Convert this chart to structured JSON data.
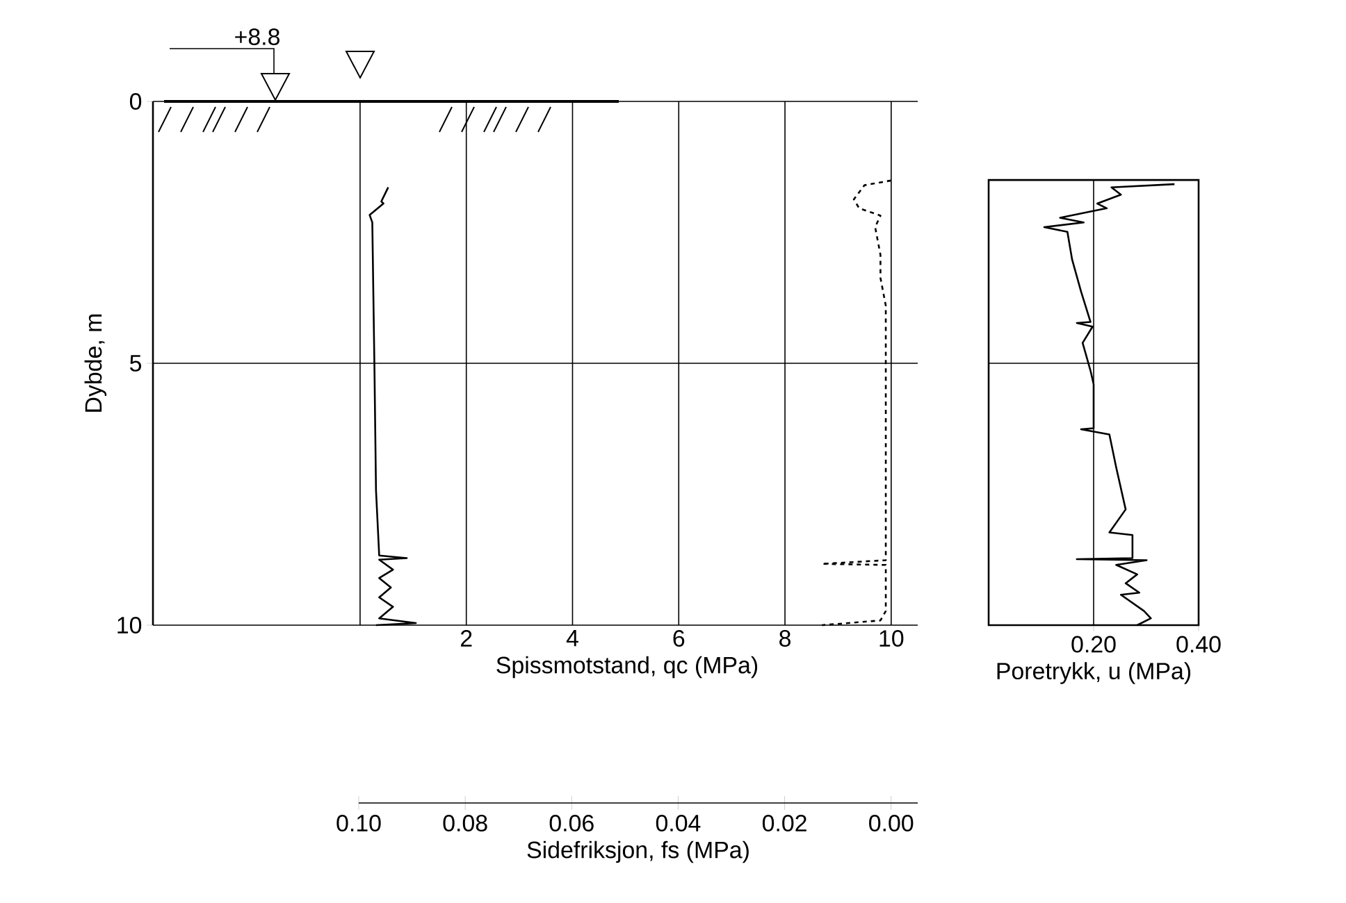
{
  "chart_data": [
    {
      "type": "line",
      "ylabel": "Dybde, m",
      "xlabel": "Spissmotstand, qc (MPa)",
      "x2label": "Sidefriksjon, fs (MPa)",
      "xlim": [
        -3.9,
        10.5
      ],
      "xticks": [
        {
          "value": 0,
          "label": null
        },
        2,
        4,
        6,
        8,
        10
      ],
      "x2lim": [
        0.1,
        -0.005
      ],
      "x2ticks": [
        {
          "value": 0.1,
          "label": "0.10"
        },
        0.08,
        0.06,
        0.04,
        0.02,
        {
          "value": 0,
          "label": "0.00"
        }
      ],
      "ylim": [
        10,
        0
      ],
      "yticks": [
        0,
        5,
        10
      ],
      "grid": true,
      "annotations": [
        "+8.8"
      ],
      "series": [
        {
          "color": "#000000",
          "x": [
            0.53,
            0.4,
            0.44,
            0.18,
            0.23,
            0.27,
            0.3,
            0.36,
            0.88,
            0.36,
            0.62,
            0.36,
            0.58,
            0.36,
            0.62,
            0.36,
            1.05,
            0.3
          ],
          "values": [
            1.64,
            1.91,
            1.95,
            2.17,
            2.31,
            5.05,
            7.43,
            8.67,
            8.72,
            8.75,
            8.94,
            9.1,
            9.28,
            9.47,
            9.65,
            9.87,
            9.96,
            10.0
          ]
        },
        {
          "color": "#000000",
          "axis": "x2",
          "line_style": "dashed",
          "x": [
            0.0,
            0.005,
            0.007,
            0.006,
            0.002,
            0.003,
            0.002,
            0.002,
            0.001,
            0.001,
            0.001,
            0.001,
            0.001,
            0.001,
            0.013,
            0.001,
            0.001,
            0.002,
            0.013
          ],
          "values": [
            1.51,
            1.6,
            1.87,
            2.04,
            2.18,
            2.4,
            2.93,
            3.37,
            3.9,
            4.6,
            5.05,
            6.55,
            7.79,
            8.76,
            8.83,
            8.85,
            9.73,
            9.91,
            10.0
          ]
        }
      ]
    },
    {
      "type": "line",
      "xlabel": "Poretrykk, u (MPa)",
      "xlim": [
        0,
        0.4
      ],
      "xticks": [
        {
          "value": 0.2,
          "label": "0.20"
        },
        {
          "value": 0.4,
          "label": "0.40"
        }
      ],
      "ylim": [
        10,
        1.5
      ],
      "yticks": [
        5,
        10
      ],
      "tick_labels": "x",
      "grid": true,
      "series": [
        {
          "color": "#000000",
          "x": [
            0.354,
            0.234,
            0.252,
            0.207,
            0.225,
            0.136,
            0.181,
            0.106,
            0.15,
            0.159,
            0.176,
            0.194,
            0.168,
            0.198,
            0.179,
            0.194,
            0.2,
            0.2,
            0.176,
            0.23,
            0.243,
            0.261,
            0.23,
            0.274,
            0.274,
            0.168,
            0.301,
            0.243,
            0.283,
            0.261,
            0.287,
            0.252,
            0.296,
            0.309,
            0.283
          ],
          "values": [
            1.58,
            1.64,
            1.78,
            1.95,
            2.04,
            2.22,
            2.31,
            2.4,
            2.49,
            3.02,
            3.63,
            4.21,
            4.23,
            4.3,
            4.61,
            5.14,
            5.4,
            6.24,
            6.26,
            6.36,
            6.99,
            7.79,
            8.23,
            8.28,
            8.72,
            8.74,
            8.76,
            8.85,
            9.03,
            9.2,
            9.38,
            9.42,
            9.73,
            9.87,
            10.0
          ]
        }
      ]
    }
  ]
}
